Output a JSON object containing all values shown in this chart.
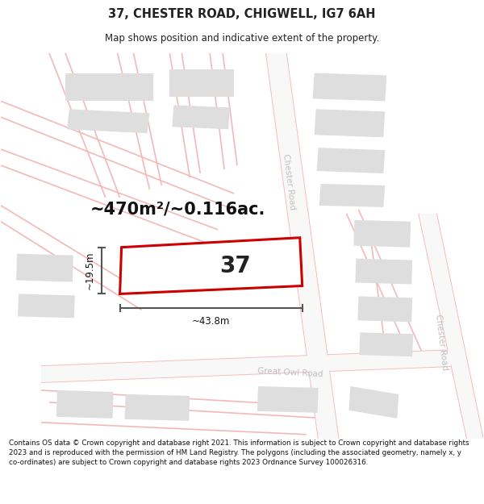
{
  "title": "37, CHESTER ROAD, CHIGWELL, IG7 6AH",
  "subtitle": "Map shows position and indicative extent of the property.",
  "footer": "Contains OS data © Crown copyright and database right 2021. This information is subject to Crown copyright and database rights 2023 and is reproduced with the permission of HM Land Registry. The polygons (including the associated geometry, namely x, y co-ordinates) are subject to Crown copyright and database rights 2023 Ordnance Survey 100026316.",
  "area_label": "~470m²/~0.116ac.",
  "width_label": "~43.8m",
  "height_label": "~19.5m",
  "number_label": "37",
  "bg_color": "#ffffff",
  "map_bg": "#f2f2f2",
  "road_line_color": "#f5b8b8",
  "building_color": "#dedede",
  "property_outline_color": "#cc0000",
  "dimension_line_color": "#555555",
  "title_color": "#222222",
  "footer_color": "#111111"
}
